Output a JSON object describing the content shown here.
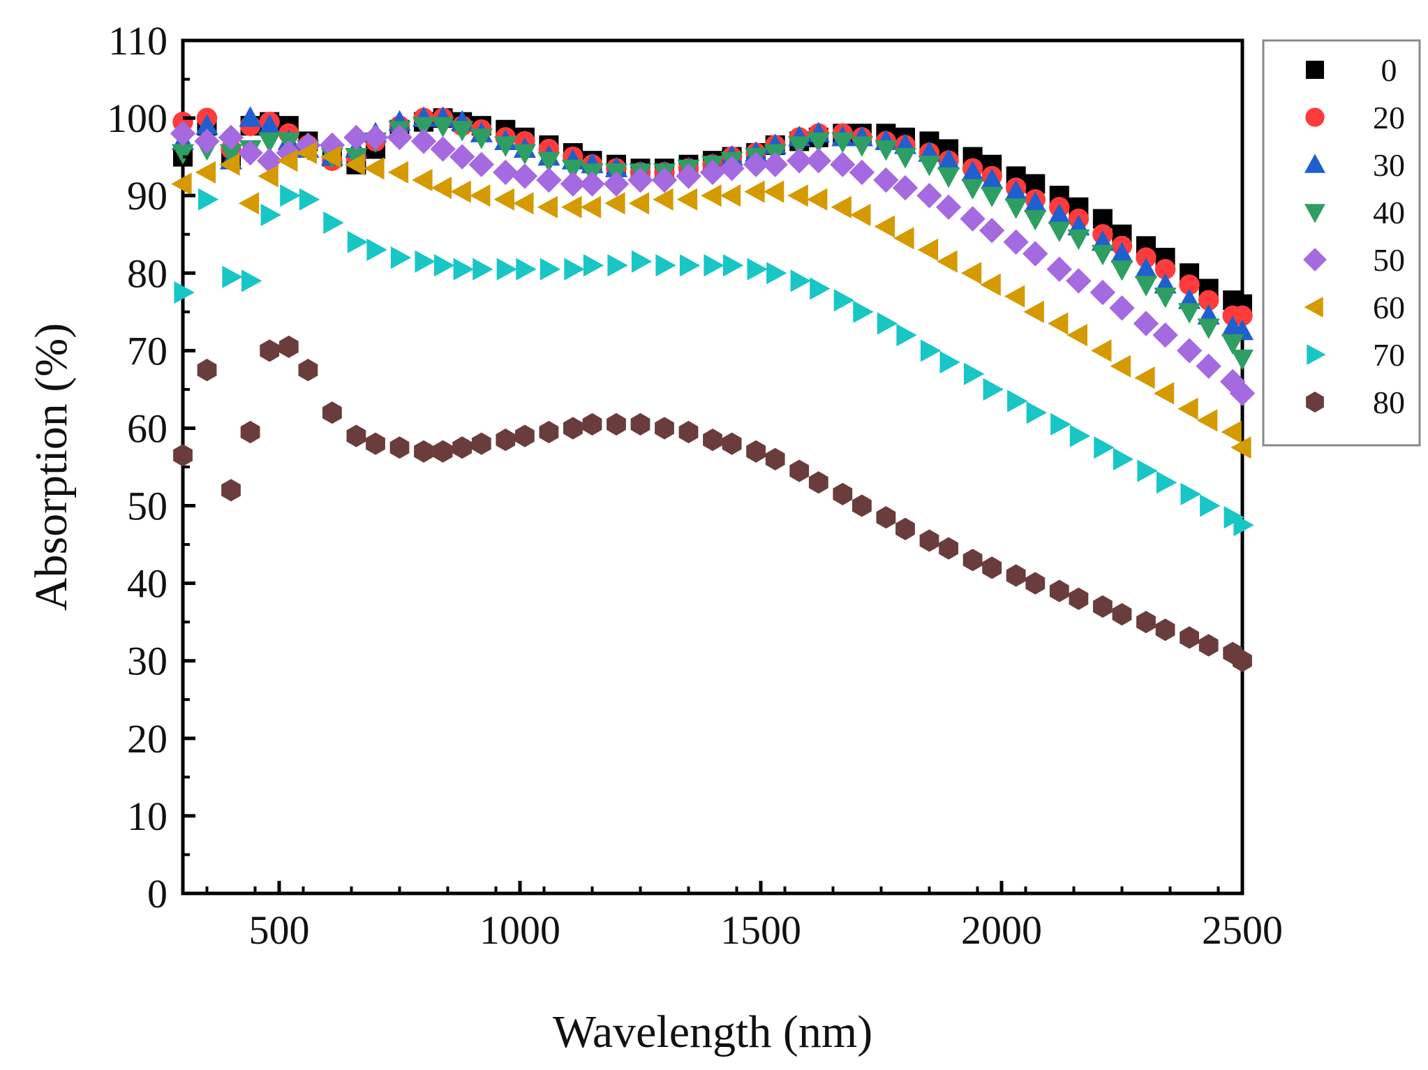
{
  "chart_data": {
    "type": "scatter",
    "title": "",
    "xlabel": "Wavelength (nm)",
    "ylabel": "Absorption (%)",
    "xlim": [
      300,
      2500
    ],
    "ylim": [
      0,
      110
    ],
    "xticks": [
      500,
      1000,
      1500,
      2000,
      2500
    ],
    "yticks": [
      0,
      10,
      20,
      30,
      40,
      50,
      60,
      70,
      80,
      90,
      100,
      110
    ],
    "grid": false,
    "legend_position": "outside-right",
    "series": [
      {
        "name": "0",
        "marker": "square",
        "color": "#000000",
        "x": [
          300,
          350,
          400,
          440,
          480,
          520,
          560,
          610,
          660,
          700,
          750,
          800,
          840,
          880,
          920,
          970,
          1010,
          1060,
          1110,
          1150,
          1200,
          1250,
          1300,
          1350,
          1400,
          1440,
          1490,
          1530,
          1580,
          1620,
          1670,
          1710,
          1760,
          1800,
          1850,
          1890,
          1940,
          1980,
          2030,
          2070,
          2120,
          2160,
          2210,
          2250,
          2300,
          2340,
          2390,
          2430,
          2480,
          2500
        ],
        "y": [
          95,
          99,
          95,
          99,
          99.5,
          99,
          97,
          95,
          94,
          96,
          98.5,
          99.5,
          100,
          99.5,
          99,
          98.5,
          97.5,
          96.5,
          95.5,
          94.5,
          94,
          93.5,
          93.5,
          94,
          94.5,
          95,
          95.5,
          96.5,
          97,
          97.5,
          98,
          98,
          98,
          97.5,
          97,
          96,
          95,
          94,
          92.5,
          91.5,
          90,
          88.5,
          87,
          85,
          83.5,
          82,
          80,
          78,
          76.5,
          76
        ]
      },
      {
        "name": "20",
        "marker": "circle",
        "color": "#ff3b3b",
        "x": [
          300,
          350,
          400,
          440,
          480,
          520,
          560,
          610,
          660,
          700,
          750,
          800,
          840,
          880,
          920,
          970,
          1010,
          1060,
          1110,
          1150,
          1200,
          1250,
          1300,
          1350,
          1400,
          1440,
          1490,
          1530,
          1580,
          1620,
          1670,
          1710,
          1760,
          1800,
          1850,
          1890,
          1940,
          1980,
          2030,
          2070,
          2120,
          2160,
          2210,
          2250,
          2300,
          2340,
          2390,
          2430,
          2480,
          2500
        ],
        "y": [
          99.5,
          100,
          96,
          99,
          99.5,
          98,
          96.5,
          94.5,
          95,
          97,
          99,
          100,
          100,
          99,
          98.5,
          97.5,
          97,
          96,
          95,
          94,
          93.5,
          93,
          93,
          93.5,
          94,
          95,
          95.5,
          96.5,
          97.5,
          98,
          98,
          97.5,
          97,
          96.5,
          95.5,
          94.5,
          93.5,
          92.5,
          91,
          89.5,
          88.5,
          87,
          85,
          83.5,
          82,
          80.5,
          78.5,
          76.5,
          74.5,
          74.5
        ]
      },
      {
        "name": "30",
        "marker": "triangle-up",
        "color": "#1f5fcf",
        "x": [
          300,
          350,
          400,
          440,
          480,
          520,
          560,
          610,
          660,
          700,
          750,
          800,
          840,
          880,
          920,
          970,
          1010,
          1060,
          1110,
          1150,
          1200,
          1250,
          1300,
          1350,
          1400,
          1440,
          1490,
          1530,
          1580,
          1620,
          1670,
          1710,
          1760,
          1800,
          1850,
          1890,
          1940,
          1980,
          2030,
          2070,
          2120,
          2160,
          2210,
          2250,
          2300,
          2340,
          2390,
          2430,
          2480,
          2500
        ],
        "y": [
          97,
          99,
          94.5,
          100,
          99,
          97,
          96,
          95,
          96,
          98,
          99.5,
          100,
          100,
          99.5,
          98,
          97,
          96,
          95,
          94.5,
          94,
          93.5,
          93,
          93,
          93.5,
          94,
          95,
          95.5,
          96.5,
          97.5,
          98,
          97.5,
          97.5,
          97,
          96.5,
          95.5,
          94.5,
          93,
          92,
          90.5,
          89,
          87.5,
          86,
          84,
          82.5,
          80.5,
          78.5,
          76.5,
          74.5,
          73,
          72.5
        ]
      },
      {
        "name": "40",
        "marker": "triangle-down",
        "color": "#2e9e62",
        "x": [
          300,
          350,
          400,
          440,
          480,
          520,
          560,
          610,
          660,
          700,
          750,
          800,
          840,
          880,
          920,
          970,
          1010,
          1060,
          1110,
          1150,
          1200,
          1250,
          1300,
          1350,
          1400,
          1440,
          1490,
          1530,
          1580,
          1620,
          1670,
          1710,
          1760,
          1800,
          1850,
          1890,
          1940,
          1980,
          2030,
          2070,
          2120,
          2160,
          2210,
          2250,
          2300,
          2340,
          2390,
          2430,
          2480,
          2500
        ],
        "y": [
          95.5,
          96,
          95.5,
          96,
          97,
          97,
          96,
          95,
          95,
          97,
          98.5,
          99,
          99,
          98.5,
          97.5,
          96.5,
          95.5,
          94.5,
          93.5,
          93,
          93,
          93,
          93,
          93.5,
          94,
          94.5,
          95,
          95.5,
          96.5,
          97,
          97,
          96.5,
          96,
          95,
          94,
          92.5,
          91,
          90,
          88.5,
          87,
          85.5,
          84.5,
          82.5,
          80.5,
          78.5,
          77,
          75,
          73,
          71,
          69
        ]
      },
      {
        "name": "50",
        "marker": "diamond",
        "color": "#a569e0",
        "x": [
          300,
          350,
          400,
          440,
          480,
          520,
          560,
          610,
          660,
          700,
          750,
          800,
          840,
          880,
          920,
          970,
          1010,
          1060,
          1110,
          1150,
          1200,
          1250,
          1300,
          1350,
          1400,
          1440,
          1490,
          1530,
          1580,
          1620,
          1670,
          1710,
          1760,
          1800,
          1850,
          1890,
          1940,
          1980,
          2030,
          2070,
          2120,
          2160,
          2210,
          2250,
          2300,
          2340,
          2390,
          2430,
          2480,
          2500
        ],
        "y": [
          98,
          97,
          97.5,
          95.5,
          94.5,
          95.5,
          96.5,
          96.5,
          97.5,
          97.5,
          97.5,
          97,
          96,
          95,
          94,
          93,
          92.5,
          92,
          91.5,
          91.5,
          91.5,
          92,
          92,
          92.5,
          93,
          93.5,
          94,
          94,
          94.5,
          94.5,
          94,
          93,
          92,
          91,
          90,
          88.5,
          87,
          85.5,
          84,
          82.5,
          80.5,
          79,
          77.5,
          75.5,
          73.5,
          72,
          70,
          68,
          66,
          64.5
        ]
      },
      {
        "name": "60",
        "marker": "triangle-left",
        "color": "#d49a00",
        "x": [
          300,
          350,
          400,
          440,
          480,
          520,
          560,
          610,
          660,
          700,
          750,
          800,
          840,
          880,
          920,
          970,
          1010,
          1060,
          1110,
          1150,
          1200,
          1250,
          1300,
          1350,
          1400,
          1440,
          1490,
          1530,
          1580,
          1620,
          1670,
          1710,
          1760,
          1800,
          1850,
          1890,
          1940,
          1980,
          2030,
          2070,
          2120,
          2160,
          2210,
          2250,
          2300,
          2340,
          2390,
          2430,
          2480,
          2500
        ],
        "y": [
          91.5,
          93,
          94,
          89,
          92.5,
          94.5,
          95.5,
          95,
          94,
          93.5,
          93,
          92,
          91,
          90.5,
          90,
          89.5,
          89,
          88.5,
          88.5,
          88.5,
          89,
          89,
          89.5,
          89.5,
          90,
          90,
          90.5,
          90.5,
          90,
          89.5,
          88.5,
          87.5,
          86,
          84.5,
          83,
          81.5,
          80,
          78.5,
          77,
          75,
          73.5,
          72,
          70,
          68,
          66.5,
          64.5,
          62.5,
          61,
          59.5,
          57.5
        ]
      },
      {
        "name": "70",
        "marker": "triangle-right",
        "color": "#18c6c6",
        "x": [
          300,
          350,
          400,
          440,
          480,
          520,
          560,
          610,
          660,
          700,
          750,
          800,
          840,
          880,
          920,
          970,
          1010,
          1060,
          1110,
          1150,
          1200,
          1250,
          1300,
          1350,
          1400,
          1440,
          1490,
          1530,
          1580,
          1620,
          1670,
          1710,
          1760,
          1800,
          1850,
          1890,
          1940,
          1980,
          2030,
          2070,
          2120,
          2160,
          2210,
          2250,
          2300,
          2340,
          2390,
          2430,
          2480,
          2500
        ],
        "y": [
          77.5,
          89.5,
          79.5,
          79,
          87.5,
          90,
          89.5,
          86.5,
          84,
          83,
          82,
          81.5,
          81,
          80.5,
          80.5,
          80.5,
          80.5,
          80.5,
          80.5,
          81,
          81,
          81.5,
          81,
          81,
          81,
          81,
          80.5,
          80,
          79,
          78,
          76.5,
          75,
          73.5,
          72,
          70,
          68.5,
          67,
          65,
          63.5,
          62,
          60.5,
          59,
          57.5,
          56,
          54.5,
          53,
          51.5,
          50,
          48.5,
          47.5
        ]
      },
      {
        "name": "80",
        "marker": "hexagon",
        "color": "#6b3c3c",
        "x": [
          300,
          350,
          400,
          440,
          480,
          520,
          560,
          610,
          660,
          700,
          750,
          800,
          840,
          880,
          920,
          970,
          1010,
          1060,
          1110,
          1150,
          1200,
          1250,
          1300,
          1350,
          1400,
          1440,
          1490,
          1530,
          1580,
          1620,
          1670,
          1710,
          1760,
          1800,
          1850,
          1890,
          1940,
          1980,
          2030,
          2070,
          2120,
          2160,
          2210,
          2250,
          2300,
          2340,
          2390,
          2430,
          2480,
          2500
        ],
        "y": [
          56.5,
          67.5,
          52,
          59.5,
          70,
          70.5,
          67.5,
          62,
          59,
          58,
          57.5,
          57,
          57,
          57.5,
          58,
          58.5,
          59,
          59.5,
          60,
          60.5,
          60.5,
          60.5,
          60,
          59.5,
          58.5,
          58,
          57,
          56,
          54.5,
          53,
          51.5,
          50,
          48.5,
          47,
          45.5,
          44.5,
          43,
          42,
          41,
          40,
          39,
          38,
          37,
          36,
          35,
          34,
          33,
          32,
          31,
          30
        ]
      }
    ]
  }
}
